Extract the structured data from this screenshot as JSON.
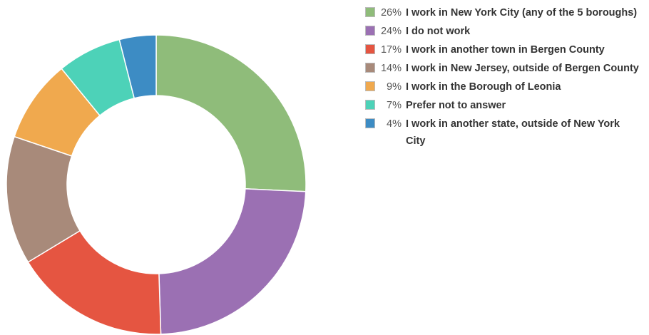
{
  "chart_data": {
    "type": "pie",
    "categories": [
      "I work in New York City (any of the 5 boroughs)",
      "I do not work",
      "I work in another town in Bergen County",
      "I work in New Jersey, outside of Bergen County",
      "I work in the Borough of Leonia",
      "Prefer not to answer",
      "I work in another state, outside of New York City"
    ],
    "values": [
      26,
      24,
      17,
      14,
      9,
      7,
      4
    ],
    "value_labels": [
      "26%",
      "24%",
      "17%",
      "14%",
      "9%",
      "7%",
      "4%"
    ],
    "colors": [
      "#8fbc7a",
      "#9b70b3",
      "#e55541",
      "#a88a7a",
      "#f0a94e",
      "#4dd2b8",
      "#3d8cc4"
    ]
  }
}
